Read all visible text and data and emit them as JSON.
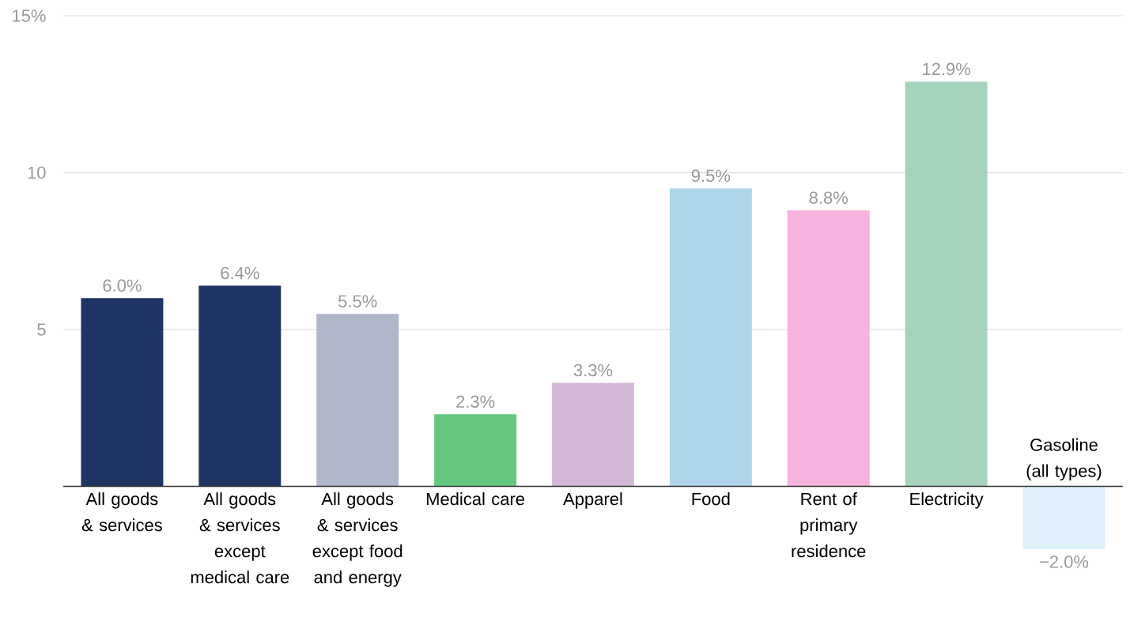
{
  "chart_data": {
    "type": "bar",
    "categories": [
      "All goods & services",
      "All goods & services except medical care",
      "All goods & services except food and energy",
      "Medical care",
      "Apparel",
      "Food",
      "Rent of primary residence",
      "Electricity",
      "Gasoline (all types)"
    ],
    "values": [
      6.0,
      6.4,
      5.5,
      2.3,
      3.3,
      9.5,
      8.8,
      12.9,
      -2.0
    ],
    "value_labels": [
      "6.0%",
      "6.4%",
      "5.5%",
      "2.3%",
      "3.3%",
      "9.5%",
      "8.8%",
      "12.9%",
      "−2.0%"
    ],
    "colors": [
      "#1f3566",
      "#1f3566",
      "#b0b7cb",
      "#65c77e",
      "#d4b8d8",
      "#aed6eb",
      "#f6b3de",
      "#a6d3bc",
      "#dff0fa"
    ],
    "ylim": [
      -2,
      15
    ],
    "yticks": [
      5,
      10,
      {
        "value": 15,
        "label": "15%"
      }
    ],
    "grid": "y"
  }
}
